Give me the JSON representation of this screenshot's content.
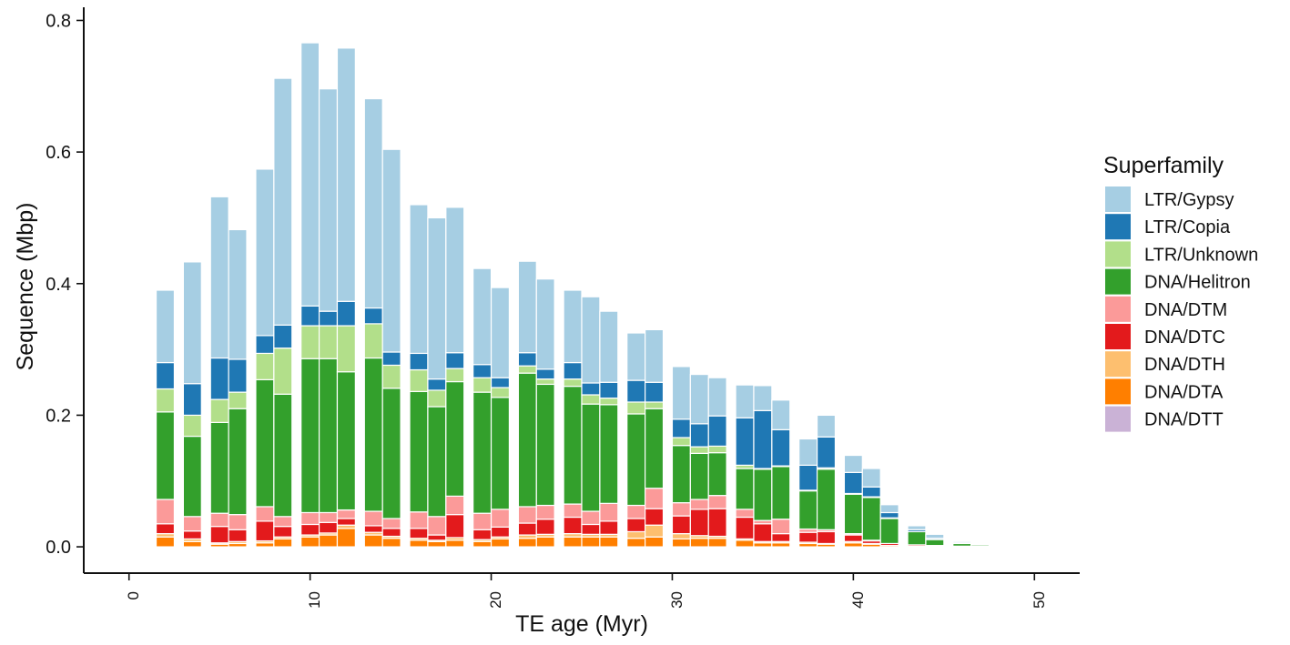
{
  "chart_data": {
    "type": "bar",
    "stacked": true,
    "xlabel": "TE age (Myr)",
    "ylabel": "Sequence (Mbp)",
    "xlim": [
      -2.5,
      52.5
    ],
    "ylim": [
      -0.04,
      0.82
    ],
    "x_ticks": [
      "0",
      "10",
      "20",
      "30",
      "40",
      "50"
    ],
    "y_ticks": [
      "0.0",
      "0.2",
      "0.4",
      "0.6",
      "0.8"
    ],
    "grid": false,
    "legend": {
      "title": "Superfamily",
      "placement": "right"
    },
    "x": [
      2,
      3.5,
      5,
      6,
      7.5,
      8.5,
      10,
      11,
      12,
      13.5,
      14.5,
      16,
      17,
      18,
      19.5,
      20.5,
      22,
      23,
      24.5,
      25.5,
      26.5,
      28,
      29,
      30.5,
      31.5,
      32.5,
      34,
      35,
      36,
      37.5,
      38.5,
      40,
      41,
      42,
      43.5,
      44.5,
      46,
      47,
      48,
      49
    ],
    "series": [
      {
        "name": "DNA/DTT",
        "color": "#cab2d6",
        "values": [
          0,
          0,
          0,
          0,
          0,
          0,
          0,
          0,
          0,
          0,
          0,
          0,
          0,
          0,
          0,
          0,
          0,
          0,
          0,
          0,
          0,
          0,
          0,
          0,
          0,
          0,
          0,
          0,
          0,
          0,
          0,
          0,
          0,
          0,
          0,
          0,
          0,
          0,
          0,
          0
        ]
      },
      {
        "name": "DNA/DTA",
        "color": "#ff7f00",
        "values": [
          0.015,
          0.008,
          0.004,
          0.005,
          0.006,
          0.012,
          0.015,
          0.018,
          0.028,
          0.018,
          0.013,
          0.01,
          0.008,
          0.01,
          0.008,
          0.012,
          0.013,
          0.015,
          0.015,
          0.015,
          0.015,
          0.013,
          0.015,
          0.012,
          0.013,
          0.013,
          0.01,
          0.006,
          0.006,
          0.005,
          0.004,
          0.006,
          0.004,
          0.002,
          0.001,
          0.001,
          0.001,
          0.001,
          0.001,
          0.001
        ]
      },
      {
        "name": "DNA/DTH",
        "color": "#fdbf6f",
        "values": [
          0.005,
          0.004,
          0.002,
          0.003,
          0.003,
          0.003,
          0.003,
          0.003,
          0.005,
          0.004,
          0.003,
          0.003,
          0.002,
          0.004,
          0.003,
          0.003,
          0.005,
          0.004,
          0.005,
          0.004,
          0.004,
          0.01,
          0.018,
          0.008,
          0.004,
          0.003,
          0.002,
          0.002,
          0.002,
          0.002,
          0.001,
          0.002,
          0.001,
          0,
          0,
          0,
          0,
          0,
          0,
          0
        ]
      },
      {
        "name": "DNA/DTC",
        "color": "#e31a1c",
        "values": [
          0.015,
          0.012,
          0.025,
          0.018,
          0.03,
          0.016,
          0.016,
          0.016,
          0.01,
          0.01,
          0.012,
          0.015,
          0.008,
          0.035,
          0.015,
          0.015,
          0.018,
          0.023,
          0.025,
          0.015,
          0.02,
          0.02,
          0.025,
          0.027,
          0.04,
          0.042,
          0.033,
          0.027,
          0.012,
          0.015,
          0.018,
          0.01,
          0.004,
          0.003,
          0.002,
          0.001,
          0,
          0,
          0,
          0
        ]
      },
      {
        "name": "DNA/DTM",
        "color": "#fb9a99",
        "values": [
          0.037,
          0.022,
          0.02,
          0.023,
          0.022,
          0.015,
          0.018,
          0.015,
          0.013,
          0.022,
          0.015,
          0.025,
          0.028,
          0.028,
          0.025,
          0.027,
          0.025,
          0.021,
          0.02,
          0.02,
          0.027,
          0.02,
          0.031,
          0.02,
          0.015,
          0.02,
          0.012,
          0.005,
          0.022,
          0.005,
          0.003,
          0.002,
          0.001,
          0,
          0,
          0,
          0,
          0,
          0,
          0
        ]
      },
      {
        "name": "DNA/Helitron",
        "color": "#33a02c",
        "values": [
          0.133,
          0.122,
          0.138,
          0.161,
          0.193,
          0.186,
          0.234,
          0.234,
          0.21,
          0.233,
          0.198,
          0.183,
          0.167,
          0.174,
          0.184,
          0.17,
          0.203,
          0.184,
          0.179,
          0.163,
          0.15,
          0.139,
          0.121,
          0.087,
          0.07,
          0.065,
          0.062,
          0.078,
          0.08,
          0.058,
          0.092,
          0.06,
          0.065,
          0.038,
          0.02,
          0.009,
          0.004,
          0.002,
          0.001,
          0.001
        ]
      },
      {
        "name": "LTR/Unknown",
        "color": "#b2df8a",
        "values": [
          0.035,
          0.032,
          0.035,
          0.025,
          0.04,
          0.07,
          0.05,
          0.05,
          0.07,
          0.052,
          0.035,
          0.033,
          0.025,
          0.02,
          0.022,
          0.015,
          0.011,
          0.008,
          0.011,
          0.014,
          0.01,
          0.018,
          0.01,
          0.012,
          0.01,
          0.01,
          0.005,
          0.001,
          0.001,
          0.001,
          0.002,
          0.001,
          0.001,
          0.001,
          0,
          0,
          0,
          0,
          0,
          0
        ]
      },
      {
        "name": "LTR/Copia",
        "color": "#1f78b4",
        "values": [
          0.04,
          0.048,
          0.063,
          0.05,
          0.027,
          0.035,
          0.03,
          0.022,
          0.037,
          0.024,
          0.02,
          0.025,
          0.017,
          0.024,
          0.02,
          0.015,
          0.02,
          0.015,
          0.025,
          0.018,
          0.024,
          0.033,
          0.03,
          0.028,
          0.035,
          0.046,
          0.072,
          0.088,
          0.055,
          0.038,
          0.047,
          0.032,
          0.015,
          0.008,
          0.003,
          0.002,
          0.001,
          0,
          0,
          0
        ]
      },
      {
        "name": "LTR/Gypsy",
        "color": "#a6cee3",
        "values": [
          0.11,
          0.185,
          0.245,
          0.197,
          0.253,
          0.375,
          0.4,
          0.338,
          0.385,
          0.318,
          0.308,
          0.226,
          0.245,
          0.221,
          0.146,
          0.137,
          0.139,
          0.137,
          0.11,
          0.131,
          0.108,
          0.072,
          0.08,
          0.08,
          0.075,
          0.058,
          0.05,
          0.038,
          0.045,
          0.04,
          0.033,
          0.026,
          0.028,
          0.012,
          0.006,
          0.006,
          0.002,
          0.001,
          0,
          0
        ]
      }
    ]
  }
}
